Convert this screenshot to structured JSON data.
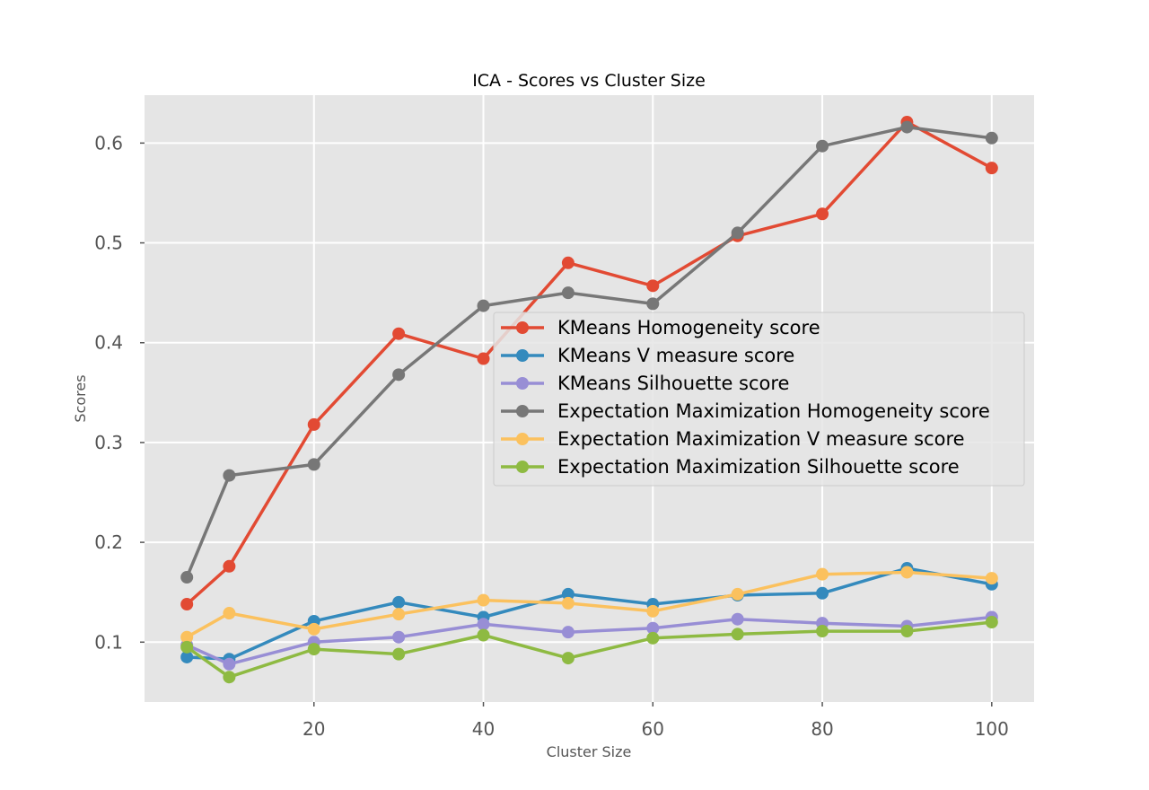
{
  "chart_data": {
    "type": "line",
    "title": "ICA - Scores vs Cluster Size",
    "xlabel": "Cluster Size",
    "ylabel": "Scores",
    "x": [
      5,
      10,
      20,
      30,
      40,
      50,
      60,
      70,
      80,
      90,
      100
    ],
    "xlim": [
      0,
      105
    ],
    "ylim": [
      0.04,
      0.648
    ],
    "xticks": [
      20,
      40,
      60,
      80,
      100
    ],
    "yticks": [
      0.1,
      0.2,
      0.3,
      0.4,
      0.5,
      0.6
    ],
    "xtick_labels": [
      "20",
      "40",
      "60",
      "80",
      "100"
    ],
    "ytick_labels": [
      "0.1",
      "0.2",
      "0.3",
      "0.4",
      "0.5",
      "0.6"
    ],
    "grid": true,
    "legend_position": "center-right",
    "series": [
      {
        "name": "KMeans Homogeneity score",
        "color": "#e24a33",
        "values": [
          0.138,
          0.176,
          0.318,
          0.409,
          0.384,
          0.48,
          0.457,
          0.507,
          0.529,
          0.621,
          0.575
        ]
      },
      {
        "name": "KMeans V measure score",
        "color": "#348abd",
        "values": [
          0.085,
          0.083,
          0.121,
          0.14,
          0.125,
          0.148,
          0.138,
          0.147,
          0.149,
          0.174,
          0.158
        ]
      },
      {
        "name": "KMeans Silhouette score",
        "color": "#988ed5",
        "values": [
          0.097,
          0.078,
          0.1,
          0.105,
          0.118,
          0.11,
          0.114,
          0.123,
          0.119,
          0.116,
          0.125
        ]
      },
      {
        "name": "Expectation Maximization Homogeneity score",
        "color": "#777777",
        "values": [
          0.165,
          0.267,
          0.278,
          0.368,
          0.437,
          0.45,
          0.439,
          0.51,
          0.597,
          0.616,
          0.605
        ]
      },
      {
        "name": "Expectation Maximization V measure score",
        "color": "#fbc15e",
        "values": [
          0.105,
          0.129,
          0.113,
          0.128,
          0.142,
          0.139,
          0.131,
          0.148,
          0.168,
          0.17,
          0.164
        ]
      },
      {
        "name": "Expectation Maximization Silhouette score",
        "color": "#8eba42",
        "values": [
          0.095,
          0.065,
          0.093,
          0.088,
          0.107,
          0.084,
          0.104,
          0.108,
          0.111,
          0.111,
          0.12
        ]
      }
    ]
  }
}
